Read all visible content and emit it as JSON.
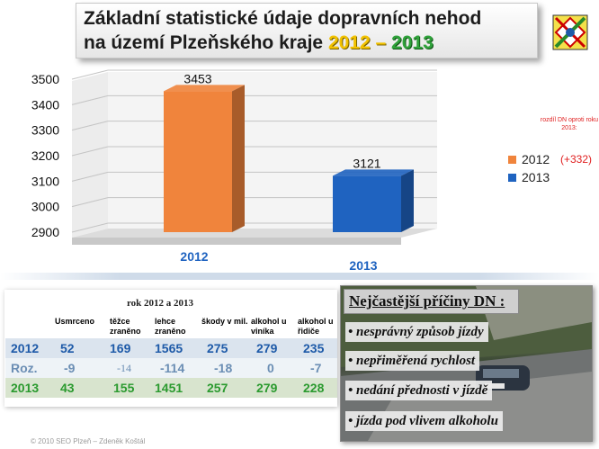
{
  "title": {
    "line1": "Základní statistické údaje dopravních nehod",
    "line2_prefix": "na území Plzeňského kraje",
    "year_a": "2012",
    "dash": "–",
    "year_b": "2013"
  },
  "chart_data": {
    "type": "bar",
    "categories": [
      "2012",
      "2013"
    ],
    "values": [
      3453,
      3121
    ],
    "data_labels": [
      "3453",
      "3121"
    ],
    "ylim": [
      2900,
      3500
    ],
    "yticks": [
      2900,
      3000,
      3100,
      3200,
      3300,
      3400,
      3500
    ],
    "colors": [
      "#f0843c",
      "#1f63c0"
    ],
    "grid": true,
    "legend_position": "right",
    "legend": [
      {
        "label": "2012",
        "color": "#f0843c"
      },
      {
        "label": "2013",
        "color": "#1f63c0"
      }
    ]
  },
  "annotation": {
    "note": "rozdíl DN oproti roku 2013:",
    "diff": "(+332)"
  },
  "table": {
    "title": "rok 2012 a 2013",
    "headers": [
      "",
      "Usmrceno",
      "těžce zraněno",
      "lehce zraněno",
      "škody v mil.",
      "alkohol u viníka",
      "alkohol u řidiče"
    ],
    "rows": [
      {
        "label": "2012",
        "values": [
          "52",
          "169",
          "1565",
          "275",
          "279",
          "235"
        ]
      },
      {
        "label": "Roz.",
        "values": [
          "-9",
          "-14",
          "-114",
          "-18",
          "0",
          "-7"
        ]
      },
      {
        "label": "2013",
        "values": [
          "43",
          "155",
          "1451",
          "257",
          "279",
          "228"
        ]
      }
    ]
  },
  "causes": {
    "heading": "Nejčastější příčiny DN :",
    "items": [
      "• nesprávný způsob jízdy",
      "• nepřiměřená rychlost",
      "• nedání přednosti v jízdě",
      "• jízda pod vlivem alkoholu"
    ]
  },
  "footer": "© 2010 SEO Plzeň – Zdeněk Koštál",
  "icons": {
    "logo": "police-crest-icon"
  },
  "colors": {
    "accent_yellow": "#f2c200",
    "accent_green": "#2fa23a",
    "note_red": "#e02020"
  }
}
